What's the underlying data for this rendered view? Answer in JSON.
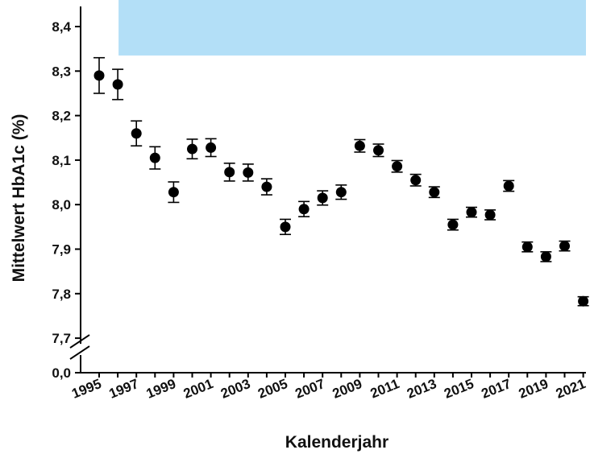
{
  "chart_data": {
    "type": "scatter",
    "error_bars": true,
    "title": "",
    "xlabel": "Kalenderjahr",
    "ylabel": "Mittelwert HbA1c (%)",
    "ylim": [
      7.7,
      8.4
    ],
    "y_axis_break": {
      "lower_tick": "0,0",
      "resume_at": 7.7
    },
    "y_ticks": [
      "8,4",
      "8,3",
      "8,2",
      "8,1",
      "8,0",
      "7,9",
      "7,8",
      "7,7",
      "0,0"
    ],
    "x_tick_labels": [
      "1995",
      "1997",
      "1999",
      "2001",
      "2003",
      "2005",
      "2007",
      "2009",
      "2011",
      "2013",
      "2015",
      "2017",
      "2019",
      "2021"
    ],
    "grid": false,
    "legend": "none",
    "highlight_band": {
      "color": "#b3dff7",
      "from_year": 1996,
      "to_year": 2021,
      "y_from": 8.335,
      "y_to": 8.46
    },
    "marker_color": "#000000",
    "points": [
      {
        "year": 1995,
        "value": 8.29,
        "err": 0.04
      },
      {
        "year": 1996,
        "value": 8.27,
        "err": 0.034
      },
      {
        "year": 1997,
        "value": 8.16,
        "err": 0.028
      },
      {
        "year": 1998,
        "value": 8.105,
        "err": 0.025
      },
      {
        "year": 1999,
        "value": 8.028,
        "err": 0.023
      },
      {
        "year": 2000,
        "value": 8.125,
        "err": 0.022
      },
      {
        "year": 2001,
        "value": 8.128,
        "err": 0.02
      },
      {
        "year": 2002,
        "value": 8.073,
        "err": 0.02
      },
      {
        "year": 2003,
        "value": 8.072,
        "err": 0.019
      },
      {
        "year": 2004,
        "value": 8.04,
        "err": 0.018
      },
      {
        "year": 2005,
        "value": 7.95,
        "err": 0.017
      },
      {
        "year": 2006,
        "value": 7.99,
        "err": 0.017
      },
      {
        "year": 2007,
        "value": 8.015,
        "err": 0.016
      },
      {
        "year": 2008,
        "value": 8.028,
        "err": 0.016
      },
      {
        "year": 2009,
        "value": 8.132,
        "err": 0.014
      },
      {
        "year": 2010,
        "value": 8.122,
        "err": 0.014
      },
      {
        "year": 2011,
        "value": 8.086,
        "err": 0.013
      },
      {
        "year": 2012,
        "value": 8.055,
        "err": 0.013
      },
      {
        "year": 2013,
        "value": 8.028,
        "err": 0.012
      },
      {
        "year": 2014,
        "value": 7.955,
        "err": 0.012
      },
      {
        "year": 2015,
        "value": 7.983,
        "err": 0.011
      },
      {
        "year": 2016,
        "value": 7.977,
        "err": 0.011
      },
      {
        "year": 2017,
        "value": 8.042,
        "err": 0.012
      },
      {
        "year": 2018,
        "value": 7.905,
        "err": 0.011
      },
      {
        "year": 2019,
        "value": 7.883,
        "err": 0.011
      },
      {
        "year": 2020,
        "value": 7.907,
        "err": 0.011
      },
      {
        "year": 2021,
        "value": 7.783,
        "err": 0.01
      }
    ]
  }
}
